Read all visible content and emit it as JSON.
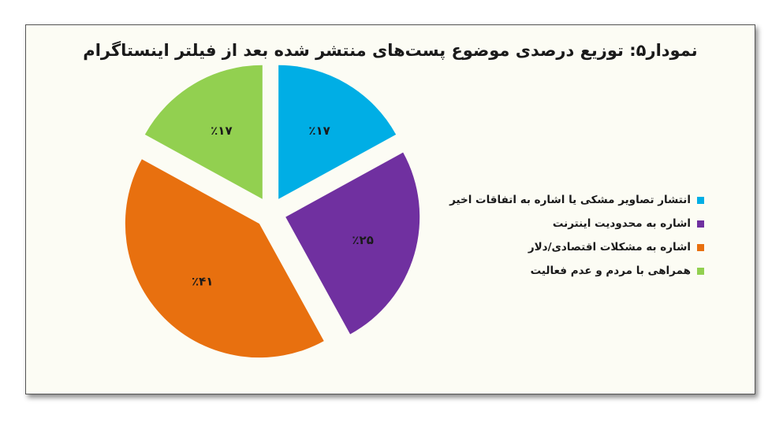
{
  "chart_data": {
    "type": "pie",
    "title": "نمودار۵: توزیع درصدی موضوع پست‌های منتشر شده بعد از فیلتر اینستاگرام",
    "slices": [
      {
        "label": "انتشار تصاویر مشکی یا اشاره به اتفاقات اخیر",
        "value": 17,
        "value_label": "٪۱۷",
        "color": "#00aee5"
      },
      {
        "label": "اشاره به محدودیت اینترنت",
        "value": 25,
        "value_label": "٪۲۵",
        "color": "#7030a0"
      },
      {
        "label": "اشاره به مشکلات اقتصادی/دلار",
        "value": 41,
        "value_label": "٪۴۱",
        "color": "#e8700f"
      },
      {
        "label": "همراهی با مردم و عدم فعالیت",
        "value": 17,
        "value_label": "٪۱۷",
        "color": "#92d050"
      }
    ],
    "legend_position": "right",
    "exploded": true
  }
}
